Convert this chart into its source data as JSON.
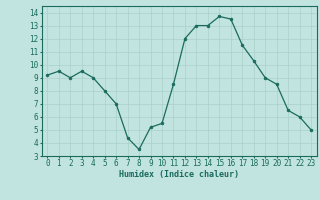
{
  "x": [
    0,
    1,
    2,
    3,
    4,
    5,
    6,
    7,
    8,
    9,
    10,
    11,
    12,
    13,
    14,
    15,
    16,
    17,
    18,
    19,
    20,
    21,
    22,
    23
  ],
  "y": [
    9.2,
    9.5,
    9.0,
    9.5,
    9.0,
    8.0,
    7.0,
    4.4,
    3.5,
    5.2,
    5.5,
    8.5,
    12.0,
    13.0,
    13.0,
    13.7,
    13.5,
    11.5,
    10.3,
    9.0,
    8.5,
    6.5,
    6.0,
    5.0
  ],
  "line_color": "#1a6b5e",
  "marker": "o",
  "markersize": 2.0,
  "linewidth": 0.9,
  "xlabel": "Humidex (Indice chaleur)",
  "xlim": [
    -0.5,
    23.5
  ],
  "ylim": [
    3,
    14.5
  ],
  "yticks": [
    3,
    4,
    5,
    6,
    7,
    8,
    9,
    10,
    11,
    12,
    13,
    14
  ],
  "xticks": [
    0,
    1,
    2,
    3,
    4,
    5,
    6,
    7,
    8,
    9,
    10,
    11,
    12,
    13,
    14,
    15,
    16,
    17,
    18,
    19,
    20,
    21,
    22,
    23
  ],
  "bg_color": "#c2e4e0",
  "grid_color": "#aacfcb",
  "xlabel_fontsize": 6.0,
  "tick_fontsize": 5.5
}
